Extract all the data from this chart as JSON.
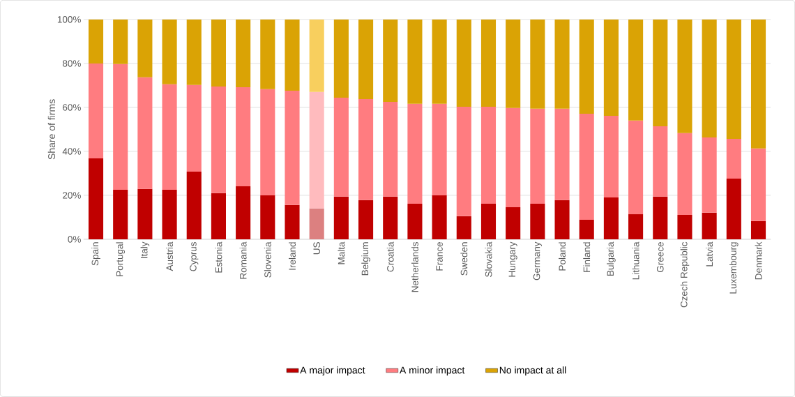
{
  "chart_data": {
    "type": "bar",
    "stacked": true,
    "ylabel": "Share of firms",
    "categories": [
      "Spain",
      "Portugal",
      "Italy",
      "Austria",
      "Cyprus",
      "Estonia",
      "Romania",
      "Slovenia",
      "Ireland",
      "US",
      "Malta",
      "Belgium",
      "Croatia",
      "Netherlands",
      "France",
      "Sweden",
      "Slovakia",
      "Hungary",
      "Germany",
      "Poland",
      "Finland",
      "Bulgaria",
      "Lithuania",
      "Greece",
      "Czech Republic",
      "Latvia",
      "Luxembourg",
      "Denmark"
    ],
    "series": [
      {
        "name": "A major impact",
        "color": "#c00000",
        "colors": [
          "#c00000",
          "#c00000",
          "#c00000",
          "#c00000",
          "#c00000",
          "#c00000",
          "#c00000",
          "#c00000",
          "#c00000",
          "#dc8080",
          "#c00000",
          "#c00000",
          "#c00000",
          "#c00000",
          "#c00000",
          "#c00000",
          "#c00000",
          "#c00000",
          "#c00000",
          "#c00000",
          "#c00000",
          "#c00000",
          "#c00000",
          "#c00000",
          "#c00000",
          "#c00000",
          "#c00000",
          "#c00000"
        ],
        "values": [
          36.8,
          22.5,
          22.9,
          22.5,
          30.8,
          21.0,
          24.1,
          20.0,
          15.6,
          14.0,
          19.4,
          17.8,
          19.4,
          16.2,
          20.0,
          10.5,
          16.2,
          14.6,
          16.2,
          17.8,
          8.9,
          19.0,
          11.4,
          19.4,
          11.1,
          12.1,
          27.6,
          8.3
        ]
      },
      {
        "name": "A minor impact",
        "color": "#ff7c80",
        "colors": [
          "#ff7c80",
          "#ff7c80",
          "#ff7c80",
          "#ff7c80",
          "#ff7c80",
          "#ff7c80",
          "#ff7c80",
          "#ff7c80",
          "#ff7c80",
          "#ffbbbe",
          "#ff7c80",
          "#ff7c80",
          "#ff7c80",
          "#ff7c80",
          "#ff7c80",
          "#ff7c80",
          "#ff7c80",
          "#ff7c80",
          "#ff7c80",
          "#ff7c80",
          "#ff7c80",
          "#ff7c80",
          "#ff7c80",
          "#ff7c80",
          "#ff7c80",
          "#ff7c80",
          "#ff7c80",
          "#ff7c80"
        ],
        "values": [
          43.2,
          57.2,
          50.8,
          48.0,
          39.4,
          48.5,
          45.1,
          48.3,
          52.0,
          53.0,
          45.0,
          46.0,
          43.1,
          45.4,
          41.6,
          49.8,
          44.1,
          45.1,
          43.2,
          41.6,
          48.2,
          37.2,
          42.6,
          32.0,
          37.2,
          34.2,
          18.1,
          33.0
        ]
      },
      {
        "name": "No impact at all",
        "color": "#daa305",
        "colors": [
          "#daa305",
          "#daa305",
          "#daa305",
          "#daa305",
          "#daa305",
          "#daa305",
          "#daa305",
          "#daa305",
          "#daa305",
          "#f8cf5e",
          "#daa305",
          "#daa305",
          "#daa305",
          "#daa305",
          "#daa305",
          "#daa305",
          "#daa305",
          "#daa305",
          "#daa305",
          "#daa305",
          "#daa305",
          "#daa305",
          "#daa305",
          "#daa305",
          "#daa305",
          "#daa305",
          "#daa305",
          "#daa305"
        ],
        "values": [
          20.0,
          20.3,
          26.3,
          29.5,
          29.8,
          30.5,
          30.8,
          31.7,
          32.4,
          33.0,
          35.6,
          36.2,
          37.5,
          38.4,
          38.4,
          39.7,
          39.7,
          40.3,
          40.6,
          40.6,
          42.9,
          43.8,
          46.0,
          48.6,
          51.7,
          53.7,
          54.3,
          58.7
        ]
      }
    ],
    "ylim": [
      0,
      100
    ],
    "yticks": [
      {
        "value": 0,
        "label": "0%"
      },
      {
        "value": 20,
        "label": "20%"
      },
      {
        "value": 40,
        "label": "40%"
      },
      {
        "value": 60,
        "label": "60%"
      },
      {
        "value": 80,
        "label": "80%"
      },
      {
        "value": 100,
        "label": "100%"
      }
    ],
    "grid": "y",
    "legend": "bottom"
  }
}
